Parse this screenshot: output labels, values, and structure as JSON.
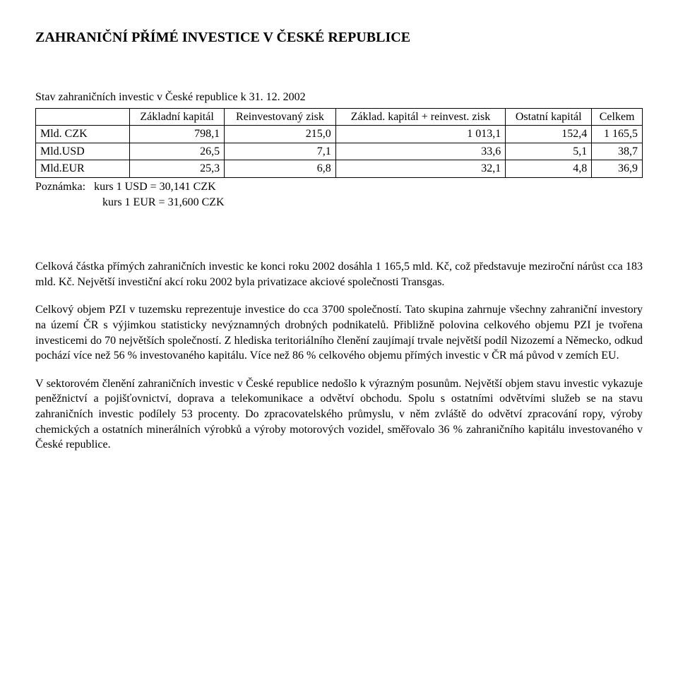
{
  "title": "ZAHRANIČNÍ PŘÍMÉ INVESTICE V ČESKÉ REPUBLICE",
  "subtitle": "Stav zahraničních investic v České republice k 31. 12. 2002",
  "table": {
    "headers": {
      "col0": "",
      "col1": "Základní kapitál",
      "col2": "Reinvestovaný zisk",
      "col3": "Základ. kapitál + reinvest. zisk",
      "col4": "Ostatní kapitál",
      "col5": "Celkem"
    },
    "rows": [
      {
        "label": "Mld. CZK",
        "c1": "798,1",
        "c2": "215,0",
        "c3": "1 013,1",
        "c4": "152,4",
        "c5": "1 165,5"
      },
      {
        "label": "Mld.USD",
        "c1": "26,5",
        "c2": "7,1",
        "c3": "33,6",
        "c4": "5,1",
        "c5": "38,7"
      },
      {
        "label": "Mld.EUR",
        "c1": "25,3",
        "c2": "6,8",
        "c3": "32,1",
        "c4": "4,8",
        "c5": "36,9"
      }
    ]
  },
  "note": {
    "label": "Poznámka:",
    "line1": "kurs 1 USD = 30,141 CZK",
    "line2": "kurs 1 EUR = 31,600 CZK"
  },
  "paragraphs": {
    "p1": "Celková částka přímých zahraničních investic ke konci roku 2002 dosáhla 1 165,5 mld. Kč, což představuje meziroční nárůst cca 183 mld. Kč. Největší investiční akcí roku 2002 byla privatizace akciové společnosti Transgas.",
    "p2": "Celkový objem PZI v tuzemsku reprezentuje investice do cca 3700 společností. Tato skupina zahrnuje všechny zahraniční investory na území ČR s výjimkou statisticky nevýznamných drobných podnikatelů. Přibližně polovina celkového objemu PZI je tvořena investicemi do 70 největších společností. Z hlediska teritoriálního členění zaujímají trvale největší podíl Nizozemí a Německo, odkud pochází více než 56 % investovaného kapitálu. Více než 86 % celkového objemu přímých investic v ČR má původ v zemích EU.",
    "p3": "V sektorovém členění zahraničních investic v České republice nedošlo k výrazným posunům. Největší objem stavu investic vykazuje peněžnictví a pojišťovnictví, doprava a telekomunikace a odvětví obchodu. Spolu s ostatními odvětvími služeb se na stavu zahraničních investic podílely 53 procenty. Do zpracovatelského průmyslu, v něm zvláště do odvětví zpracování ropy, výroby chemických a ostatních minerálních výrobků a výroby motorových vozidel, směřovalo 36 % zahraničního kapitálu investovaného v České republice."
  }
}
